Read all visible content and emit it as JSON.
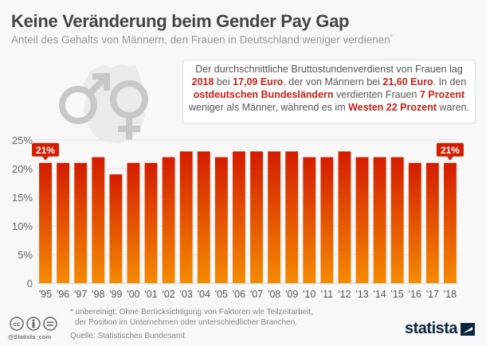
{
  "header": {
    "title": "Keine Veränderung beim Gender Pay Gap",
    "subtitle": "Anteil des Gehalts von Männern, den Frauen in Deutschland weniger verdienen",
    "subtitle_mark": "*"
  },
  "decoration": {
    "icons": [
      "male-symbol-icon",
      "female-symbol-icon",
      "germany-map-icon"
    ]
  },
  "infobox": {
    "parts": [
      {
        "t": "Der durchschnittliche Bruttostundenverdienst von Frauen lag ",
        "hl": false
      },
      {
        "t": "2018",
        "hl": true
      },
      {
        "t": " bei ",
        "hl": false
      },
      {
        "t": "17,09 Euro",
        "hl": true
      },
      {
        "t": ", der von Männern bei ",
        "hl": false
      },
      {
        "t": "21,60 Euro",
        "hl": true
      },
      {
        "t": ". In den ",
        "hl": false
      },
      {
        "t": "ostdeutschen Bundesländern",
        "hl": true
      },
      {
        "t": " verdienten Frauen ",
        "hl": false
      },
      {
        "t": "7 Prozent",
        "hl": true
      },
      {
        "t": " weniger als Männer, während es im ",
        "hl": false
      },
      {
        "t": "Westen 22 Prozent",
        "hl": true
      },
      {
        "t": " waren.",
        "hl": false
      }
    ]
  },
  "chart_data": {
    "type": "bar",
    "title": "Keine Veränderung beim Gender Pay Gap",
    "xlabel": "",
    "ylabel": "",
    "categories": [
      "'95",
      "'96",
      "'97",
      "'98",
      "'99",
      "'00",
      "'01",
      "'02",
      "'03",
      "'04",
      "'05",
      "'06",
      "'07",
      "'08",
      "'09",
      "'10",
      "'11",
      "'12",
      "'13",
      "'14",
      "'15",
      "'16",
      "'17",
      "'18"
    ],
    "values": [
      21,
      21,
      21,
      22,
      19,
      21,
      21,
      22,
      23,
      23,
      22,
      23,
      23,
      23,
      23,
      22,
      22,
      23,
      22,
      22,
      22,
      21,
      21,
      21
    ],
    "ylim": [
      0,
      25
    ],
    "yticks": [
      0,
      5,
      10,
      15,
      20,
      25
    ],
    "ytick_labels": [
      "0",
      "5%",
      "10%",
      "15%",
      "20%",
      "25%"
    ],
    "grid": true,
    "annotations": [
      {
        "category": "'95",
        "label": "21%"
      },
      {
        "category": "'18",
        "label": "21%"
      }
    ],
    "colors": {
      "bar_top": "#d41c00",
      "bar_bottom": "#f58a00",
      "label_bg": "#d41c00"
    }
  },
  "footer": {
    "footnote_line1": "* unbereinigt: Ohne Berücksichtigung von Faktoren wie Teilzeitarbeit,",
    "footnote_line2": "der Position im Unternehmen oder unterschiedlicher Branchen.",
    "source": "Quelle: Statistisches Bundesamt",
    "handle": "@Statista_com",
    "logo": "statista",
    "license_icons": [
      "cc-icon",
      "by-icon",
      "nd-icon"
    ]
  }
}
